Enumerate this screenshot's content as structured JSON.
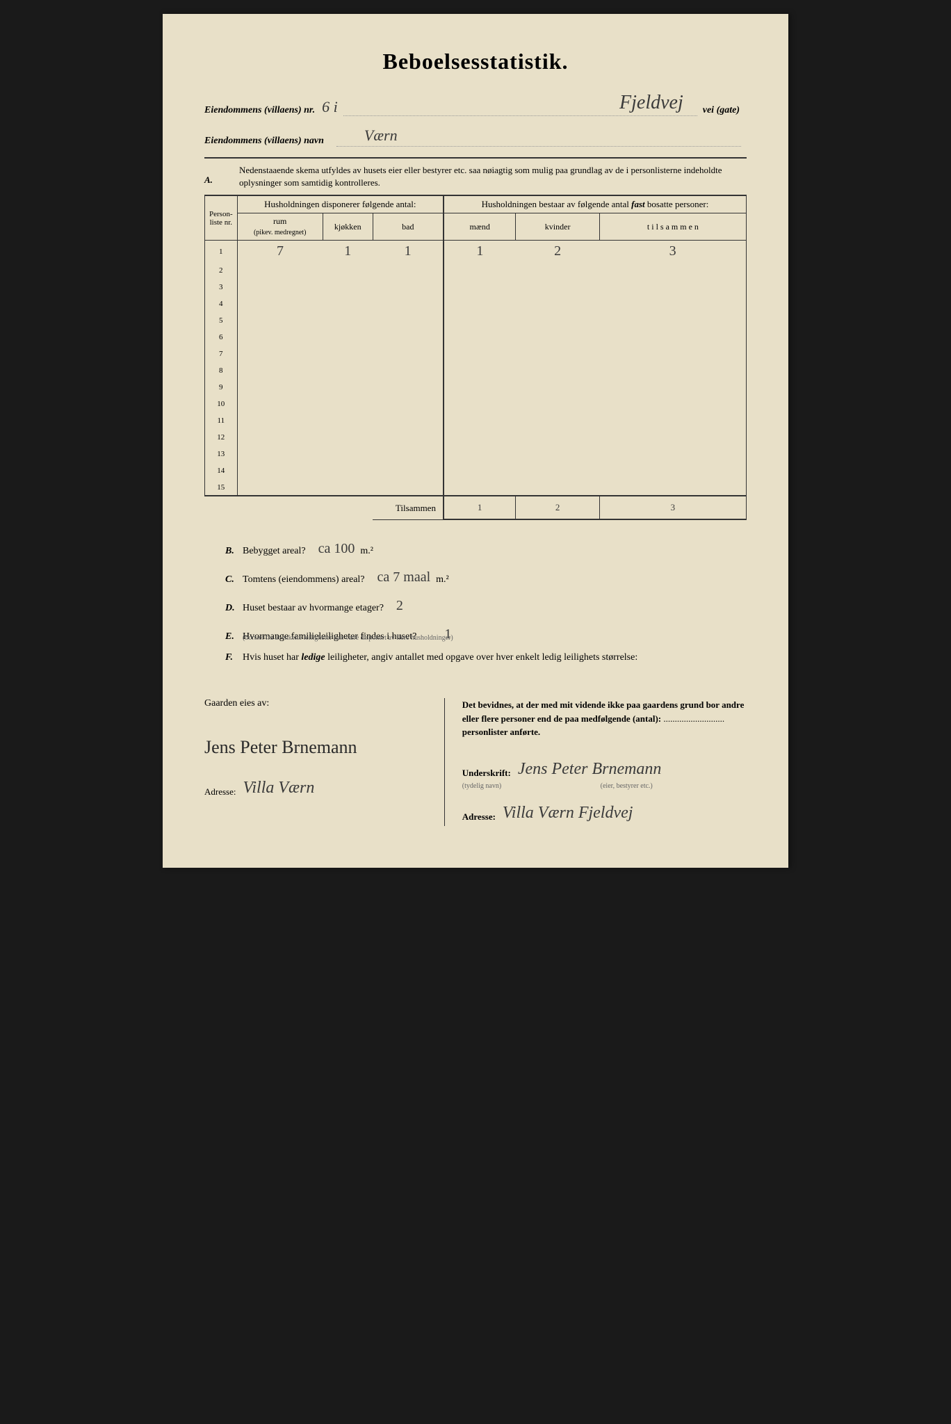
{
  "title": "Beboelsesstatistik.",
  "header": {
    "nr_label": "Eiendommens (villaens) nr.",
    "nr_value": "6 i",
    "street_value": "Fjeldvej",
    "street_suffix": "vei (gate)",
    "name_label": "Eiendommens (villaens) navn",
    "name_value": "Værn"
  },
  "sectionA": {
    "letter": "A.",
    "instructions": "Nedenstaaende skema utfyldes av husets eier eller bestyrer etc. saa nøiagtig som mulig paa grundlag av de i personlisterne indeholdte oplysninger som samtidig kontrolleres."
  },
  "table": {
    "col_person": "Person-liste nr.",
    "group1": "Husholdningen disponerer følgende antal:",
    "group2": "Husholdningen bestaar av følgende antal fast bosatte personer:",
    "col_rum": "rum",
    "col_rum_sub": "(pikev. medregnet)",
    "col_kjokken": "kjøkken",
    "col_bad": "bad",
    "col_maend": "mænd",
    "col_kvinder": "kvinder",
    "col_tilsammen": "t i l s a m m e n",
    "rows": [
      {
        "nr": "1",
        "rum": "7",
        "kjokken": "1",
        "bad": "1",
        "maend": "1",
        "kvinder": "2",
        "tilsammen": "3"
      },
      {
        "nr": "2",
        "rum": "",
        "kjokken": "",
        "bad": "",
        "maend": "",
        "kvinder": "",
        "tilsammen": ""
      },
      {
        "nr": "3",
        "rum": "",
        "kjokken": "",
        "bad": "",
        "maend": "",
        "kvinder": "",
        "tilsammen": ""
      },
      {
        "nr": "4",
        "rum": "",
        "kjokken": "",
        "bad": "",
        "maend": "",
        "kvinder": "",
        "tilsammen": ""
      },
      {
        "nr": "5",
        "rum": "",
        "kjokken": "",
        "bad": "",
        "maend": "",
        "kvinder": "",
        "tilsammen": ""
      },
      {
        "nr": "6",
        "rum": "",
        "kjokken": "",
        "bad": "",
        "maend": "",
        "kvinder": "",
        "tilsammen": ""
      },
      {
        "nr": "7",
        "rum": "",
        "kjokken": "",
        "bad": "",
        "maend": "",
        "kvinder": "",
        "tilsammen": ""
      },
      {
        "nr": "8",
        "rum": "",
        "kjokken": "",
        "bad": "",
        "maend": "",
        "kvinder": "",
        "tilsammen": ""
      },
      {
        "nr": "9",
        "rum": "",
        "kjokken": "",
        "bad": "",
        "maend": "",
        "kvinder": "",
        "tilsammen": ""
      },
      {
        "nr": "10",
        "rum": "",
        "kjokken": "",
        "bad": "",
        "maend": "",
        "kvinder": "",
        "tilsammen": ""
      },
      {
        "nr": "11",
        "rum": "",
        "kjokken": "",
        "bad": "",
        "maend": "",
        "kvinder": "",
        "tilsammen": ""
      },
      {
        "nr": "12",
        "rum": "",
        "kjokken": "",
        "bad": "",
        "maend": "",
        "kvinder": "",
        "tilsammen": ""
      },
      {
        "nr": "13",
        "rum": "",
        "kjokken": "",
        "bad": "",
        "maend": "",
        "kvinder": "",
        "tilsammen": ""
      },
      {
        "nr": "14",
        "rum": "",
        "kjokken": "",
        "bad": "",
        "maend": "",
        "kvinder": "",
        "tilsammen": ""
      },
      {
        "nr": "15",
        "rum": "",
        "kjokken": "",
        "bad": "",
        "maend": "",
        "kvinder": "",
        "tilsammen": ""
      }
    ],
    "totals_label": "Tilsammen",
    "totals": {
      "maend": "1",
      "kvinder": "2",
      "tilsammen": "3"
    }
  },
  "questions": {
    "B": {
      "letter": "B.",
      "text": "Bebygget areal?",
      "answer": "ca  100",
      "unit": "m.²"
    },
    "C": {
      "letter": "C.",
      "text": "Tomtens (eiendommens) areal?",
      "answer": "ca  7 maal",
      "unit": "m.²"
    },
    "D": {
      "letter": "D.",
      "text": "Huset bestaar av hvormange etager?",
      "answer": "2",
      "unit": ""
    },
    "E": {
      "letter": "E.",
      "text": "Hvormange familieleiligheter findes i huset?",
      "answer": "1",
      "unit": "",
      "sub": "(bortset fra at enkelte leiligheter kan være disponert av flere husholdninger)"
    },
    "F": {
      "letter": "F.",
      "text": "Hvis huset har ledige leiligheter, angiv antallet med opgave over hver enkelt ledig leilighets størrelse:"
    }
  },
  "bottom": {
    "owner_label": "Gaarden eies av:",
    "owner_signature": "Jens Peter Brnemann",
    "owner_address_label": "Adresse:",
    "owner_address": "Villa Værn",
    "declaration": "Det bevidnes, at der med mit vidende ikke paa gaardens grund bor andre eller flere personer end de paa medfølgende (antal):",
    "declaration_suffix": "personlister anførte.",
    "sig_label": "Underskrift:",
    "sig_sub": "(tydelig navn)",
    "sig_sub2": "(eier, bestyrer etc.)",
    "sig_value": "Jens Peter Brnemann",
    "addr_label": "Adresse:",
    "addr_value": "Villa Værn Fjeldvej"
  },
  "colors": {
    "paper": "#e8e0c8",
    "ink": "#333333",
    "handwriting": "#3a3a3a",
    "background": "#1a1a1a"
  }
}
